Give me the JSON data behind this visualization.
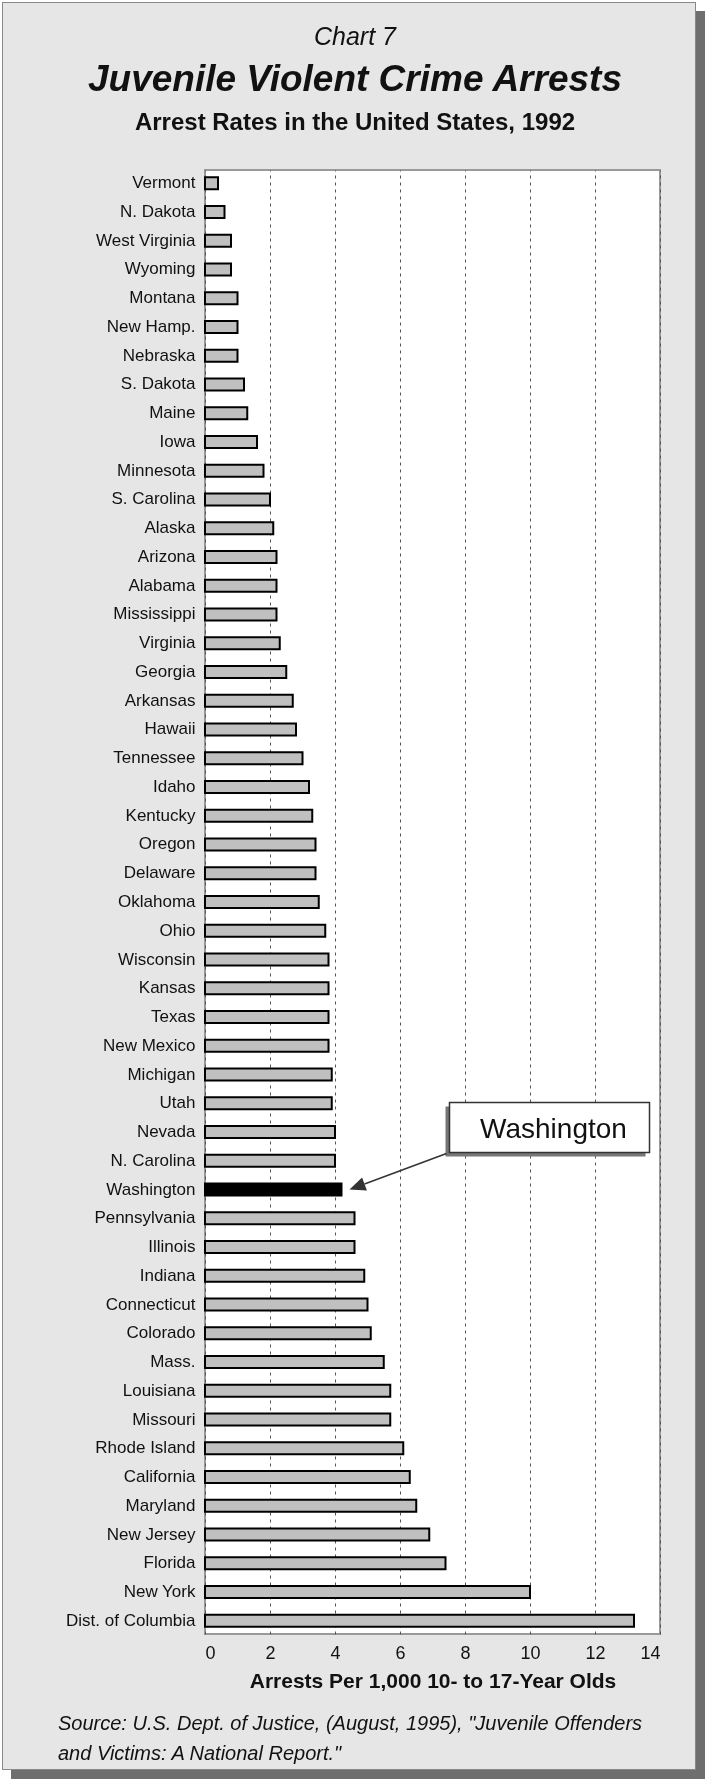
{
  "chart_data": {
    "type": "bar",
    "orientation": "horizontal",
    "title": "Juvenile Violent Crime Arrests",
    "subtitle": "Arrest Rates in the United States, 1992",
    "xlabel": "Arrests Per 1,000 10- to 17-Year Olds",
    "categories": [
      "Vermont",
      "N. Dakota",
      "West Virginia",
      "Wyoming",
      "Montana",
      "New Hamp.",
      "Nebraska",
      "S. Dakota",
      "Maine",
      "Iowa",
      "Minnesota",
      "S. Carolina",
      "Alaska",
      "Arizona",
      "Alabama",
      "Mississippi",
      "Virginia",
      "Georgia",
      "Arkansas",
      "Hawaii",
      "Tennessee",
      "Idaho",
      "Kentucky",
      "Oregon",
      "Delaware",
      "Oklahoma",
      "Ohio",
      "Wisconsin",
      "Kansas",
      "Texas",
      "New Mexico",
      "Michigan",
      "Utah",
      "Nevada",
      "N. Carolina",
      "Washington",
      "Pennsylvania",
      "Illinois",
      "Indiana",
      "Connecticut",
      "Colorado",
      "Mass.",
      "Louisiana",
      "Missouri",
      "Rhode Island",
      "California",
      "Maryland",
      "New Jersey",
      "Florida",
      "New York",
      "Dist. of Columbia"
    ],
    "values": [
      0.4,
      0.6,
      0.8,
      0.8,
      1.0,
      1.0,
      1.0,
      1.2,
      1.3,
      1.6,
      1.8,
      2.0,
      2.1,
      2.2,
      2.2,
      2.2,
      2.3,
      2.5,
      2.7,
      2.8,
      3.0,
      3.2,
      3.3,
      3.4,
      3.4,
      3.5,
      3.7,
      3.8,
      3.8,
      3.8,
      3.8,
      3.9,
      3.9,
      4.0,
      4.0,
      4.2,
      4.6,
      4.6,
      4.9,
      5.0,
      5.1,
      5.5,
      5.7,
      5.7,
      6.1,
      6.3,
      6.5,
      6.9,
      7.4,
      10.0,
      13.2
    ],
    "colors": [
      "#c0c0c0",
      "#c0c0c0",
      "#c0c0c0",
      "#c0c0c0",
      "#c0c0c0",
      "#c0c0c0",
      "#c0c0c0",
      "#c0c0c0",
      "#c0c0c0",
      "#c0c0c0",
      "#c0c0c0",
      "#c0c0c0",
      "#c0c0c0",
      "#c0c0c0",
      "#c0c0c0",
      "#c0c0c0",
      "#c0c0c0",
      "#c0c0c0",
      "#c0c0c0",
      "#c0c0c0",
      "#c0c0c0",
      "#c0c0c0",
      "#c0c0c0",
      "#c0c0c0",
      "#c0c0c0",
      "#c0c0c0",
      "#c0c0c0",
      "#c0c0c0",
      "#c0c0c0",
      "#c0c0c0",
      "#c0c0c0",
      "#c0c0c0",
      "#c0c0c0",
      "#c0c0c0",
      "#c0c0c0",
      "#000000",
      "#c0c0c0",
      "#c0c0c0",
      "#c0c0c0",
      "#c0c0c0",
      "#c0c0c0",
      "#c0c0c0",
      "#c0c0c0",
      "#c0c0c0",
      "#c0c0c0",
      "#c0c0c0",
      "#c0c0c0",
      "#c0c0c0",
      "#c0c0c0",
      "#c0c0c0",
      "#c0c0c0"
    ],
    "xlim": [
      0,
      14
    ],
    "xticks": [
      0,
      2,
      4,
      6,
      8,
      10,
      12,
      14
    ],
    "grid": "x",
    "annotations": [
      "Chart 7",
      "Washington",
      "Source:  U.S. Dept. of Justice, (August, 1995), \"Juvenile Offenders and Victims: A National Report.\""
    ]
  }
}
